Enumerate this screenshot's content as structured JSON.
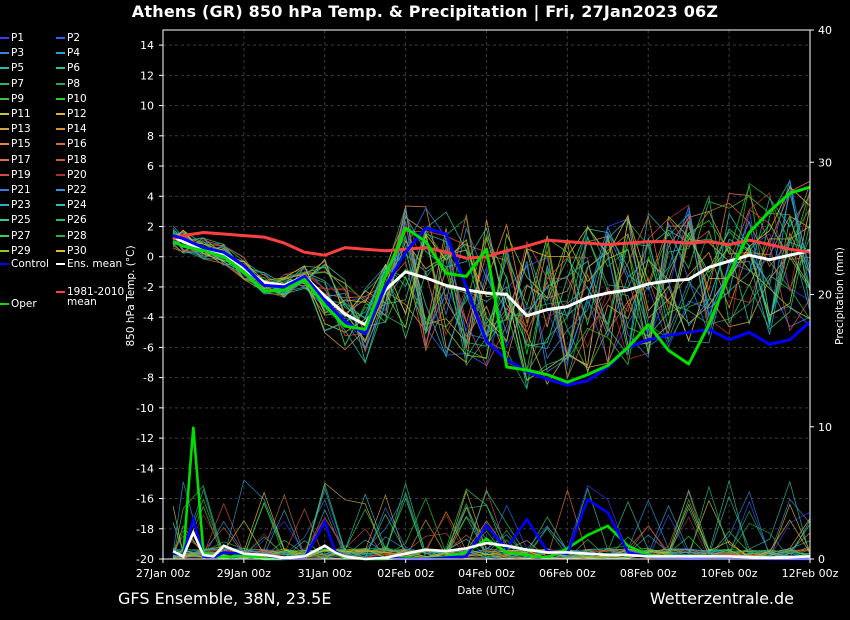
{
  "title": "Athens  (GR)  850 hPa Temp. & Precipitation | Fri, 27Jan2023 06Z",
  "footer": {
    "left": "GFS Ensemble, 38N, 23.5E",
    "right": "Wetterzentrale.de"
  },
  "legend": {
    "members": [
      {
        "label": "P1",
        "color": "#3a3aff"
      },
      {
        "label": "P2",
        "color": "#2f5fff"
      },
      {
        "label": "P3",
        "color": "#3b83d8"
      },
      {
        "label": "P4",
        "color": "#2ea0d0"
      },
      {
        "label": "P5",
        "color": "#2fb4b4"
      },
      {
        "label": "P6",
        "color": "#2ac48a"
      },
      {
        "label": "P7",
        "color": "#2fb46a"
      },
      {
        "label": "P8",
        "color": "#27a85a"
      },
      {
        "label": "P9",
        "color": "#3fc43f"
      },
      {
        "label": "P10",
        "color": "#22d422"
      },
      {
        "label": "P11",
        "color": "#c8c83a"
      },
      {
        "label": "P12",
        "color": "#d4b43a"
      },
      {
        "label": "P13",
        "color": "#d8a23c"
      },
      {
        "label": "P14",
        "color": "#e0902a"
      },
      {
        "label": "P15",
        "color": "#e08a4a"
      },
      {
        "label": "P16",
        "color": "#c8703a"
      },
      {
        "label": "P17",
        "color": "#e07040"
      },
      {
        "label": "P18",
        "color": "#d05a3a"
      },
      {
        "label": "P19",
        "color": "#d84a4a"
      },
      {
        "label": "P20",
        "color": "#b03030"
      },
      {
        "label": "P21",
        "color": "#3a7ad8"
      },
      {
        "label": "P22",
        "color": "#2a9ae0"
      },
      {
        "label": "P23",
        "color": "#2ab0c8"
      },
      {
        "label": "P24",
        "color": "#2ac0b0"
      },
      {
        "label": "P25",
        "color": "#2ad08a"
      },
      {
        "label": "P26",
        "color": "#22c06a"
      },
      {
        "label": "P27",
        "color": "#3ad050"
      },
      {
        "label": "P28",
        "color": "#2ab040"
      },
      {
        "label": "P29",
        "color": "#8ad020"
      },
      {
        "label": "P30",
        "color": "#e0c020"
      }
    ],
    "control": {
      "label": "Control",
      "color": "#0000ff"
    },
    "ens_mean": {
      "label": "Ens. mean",
      "color": "#ffffff"
    },
    "oper": {
      "label": "Oper",
      "color": "#00e000"
    },
    "climate": {
      "line1": "1981-2010",
      "line2": "mean",
      "color": "#ff4040"
    }
  },
  "chart_data": {
    "type": "line",
    "xlabel": "Date (UTC)",
    "ylabel": "850 hPa Temp. (°C)",
    "y2label": "Precipitation (mm)",
    "x_start": "2023-01-27T00",
    "x_end": "2023-02-12T00",
    "xticks": [
      "27Jan 00z",
      "29Jan 00z",
      "31Jan 00z",
      "02Feb 00z",
      "04Feb 00z",
      "06Feb 00z",
      "08Feb 00z",
      "10Feb 00z",
      "12Feb 00z"
    ],
    "ylim": [
      -20,
      15
    ],
    "yticks": [
      -20,
      -18,
      -16,
      -14,
      -12,
      -10,
      -8,
      -6,
      -4,
      -2,
      0,
      2,
      4,
      6,
      8,
      10,
      12,
      14
    ],
    "y2lim": [
      0,
      40
    ],
    "y2ticks": [
      0,
      10,
      20,
      30,
      40
    ],
    "grid": true,
    "series": [
      {
        "name": "Ens. mean",
        "color": "#ffffff",
        "x_days": [
          0.25,
          0.5,
          1,
          1.5,
          2,
          2.5,
          3,
          3.5,
          4,
          4.5,
          5,
          5.5,
          6,
          6.5,
          7,
          7.5,
          8,
          8.5,
          9,
          9.5,
          10,
          10.5,
          11,
          11.5,
          12,
          12.5,
          13,
          13.5,
          14,
          14.5,
          15,
          15.5,
          16
        ],
        "values": [
          1.3,
          1.0,
          0.5,
          0.2,
          -0.8,
          -1.7,
          -1.9,
          -1.3,
          -2.6,
          -3.8,
          -4.5,
          -2.2,
          -1.0,
          -1.4,
          -1.9,
          -2.2,
          -2.4,
          -2.5,
          -3.9,
          -3.5,
          -3.3,
          -2.7,
          -2.4,
          -2.2,
          -1.8,
          -1.6,
          -1.5,
          -0.7,
          -0.3,
          0.1,
          -0.2,
          0.1,
          0.4
        ]
      },
      {
        "name": "1981-2010 mean",
        "color": "#ff4040",
        "x_days": [
          0.25,
          0.5,
          1,
          1.5,
          2,
          2.5,
          3,
          3.5,
          4,
          4.5,
          5,
          5.5,
          6,
          6.5,
          7,
          7.5,
          8,
          8.5,
          9,
          9.5,
          10,
          10.5,
          11,
          11.5,
          12,
          12.5,
          13,
          13.5,
          14,
          14.5,
          15,
          15.5,
          16
        ],
        "values": [
          1.2,
          1.4,
          1.6,
          1.5,
          1.4,
          1.3,
          0.9,
          0.3,
          0.1,
          0.6,
          0.5,
          0.4,
          0.5,
          0.6,
          0.3,
          -0.1,
          0.0,
          0.4,
          0.7,
          1.1,
          1.0,
          0.9,
          0.8,
          0.9,
          1.0,
          1.0,
          0.9,
          1.0,
          0.8,
          1.1,
          0.8,
          0.5,
          0.3
        ]
      },
      {
        "name": "Control",
        "color": "#0000ff",
        "x_days": [
          0.25,
          0.5,
          1,
          1.5,
          2,
          2.5,
          3,
          3.5,
          4,
          4.5,
          5,
          5.5,
          6,
          6.5,
          7,
          7.5,
          8,
          8.5,
          9,
          9.5,
          10,
          10.5,
          11,
          11.5,
          12,
          12.5,
          13,
          13.5,
          14,
          14.5,
          15,
          15.5,
          16
        ],
        "values": [
          1.4,
          1.2,
          0.6,
          0.3,
          -0.6,
          -1.9,
          -2.0,
          -1.3,
          -2.9,
          -4.3,
          -5.1,
          -2.0,
          0.3,
          1.9,
          1.5,
          -2.0,
          -5.6,
          -6.8,
          -7.6,
          -8.1,
          -8.5,
          -8.2,
          -7.3,
          -6.0,
          -5.5,
          -5.2,
          -5.0,
          -4.8,
          -5.5,
          -5.0,
          -5.8,
          -5.5,
          -4.3
        ]
      },
      {
        "name": "Oper",
        "color": "#00e000",
        "x_days": [
          0.25,
          0.5,
          1,
          1.5,
          2,
          2.5,
          3,
          3.5,
          4,
          4.5,
          5,
          5.5,
          6,
          6.5,
          7,
          7.5,
          8,
          8.5,
          9,
          9.5,
          10,
          10.5,
          11,
          11.5,
          12,
          12.5,
          13,
          13.5,
          14,
          14.5,
          15,
          15.5,
          16
        ],
        "values": [
          1.0,
          0.7,
          0.4,
          0.0,
          -1.0,
          -2.3,
          -2.2,
          -1.5,
          -3.2,
          -4.6,
          -4.8,
          -1.3,
          1.9,
          1.0,
          -1.1,
          -1.3,
          0.5,
          -7.3,
          -7.5,
          -7.8,
          -8.3,
          -7.8,
          -7.2,
          -6.0,
          -4.5,
          -6.2,
          -7.1,
          -4.5,
          -1.2,
          1.6,
          3.0,
          4.2,
          4.6
        ]
      }
    ],
    "precip_series": [
      {
        "name": "Oper",
        "color": "#00e000",
        "x_days": [
          0.25,
          0.5,
          0.75,
          1,
          1.25,
          1.5,
          2,
          2.5,
          3,
          3.5,
          4,
          4.25,
          4.5,
          5,
          5.5,
          6,
          6.5,
          7,
          7.5,
          8,
          8.5,
          9,
          9.5,
          10,
          10.5,
          11,
          11.5,
          12,
          12.5,
          13,
          14,
          15,
          16
        ],
        "values": [
          0.5,
          0.2,
          10.0,
          0.5,
          0.2,
          0.1,
          0.3,
          0.0,
          0.0,
          0.2,
          1.0,
          0.5,
          0.1,
          0.0,
          0.0,
          0.1,
          0.0,
          0.2,
          0.5,
          1.5,
          0.5,
          0.3,
          0.1,
          0.8,
          1.8,
          2.5,
          1.0,
          0.3,
          0.1,
          0.2,
          0.1,
          0.1,
          0.0
        ]
      },
      {
        "name": "Control",
        "color": "#0000ff",
        "x_days": [
          0.25,
          0.5,
          0.75,
          1,
          1.25,
          1.5,
          2,
          2.5,
          3,
          3.5,
          4,
          4.25,
          4.5,
          5,
          5.5,
          6,
          6.5,
          7,
          7.5,
          8,
          8.5,
          9,
          9.5,
          10,
          10.5,
          11,
          11.5,
          12,
          12.5,
          13,
          14,
          15,
          16
        ],
        "values": [
          0.4,
          0.3,
          3.0,
          0.2,
          0.1,
          0.5,
          0.4,
          0.3,
          0.0,
          0.1,
          2.8,
          0.6,
          0.2,
          0.0,
          0.1,
          0.0,
          0.0,
          0.1,
          0.2,
          2.5,
          0.8,
          3.0,
          0.6,
          0.4,
          4.5,
          3.5,
          0.5,
          0.2,
          0.1,
          0.0,
          0.1,
          0.0,
          0.0
        ]
      },
      {
        "name": "Ens. mean",
        "color": "#ffffff",
        "x_days": [
          0.25,
          0.5,
          0.75,
          1,
          1.25,
          1.5,
          2,
          2.5,
          3,
          3.5,
          4,
          4.25,
          4.5,
          5,
          5.5,
          6,
          6.5,
          7,
          7.5,
          8,
          8.5,
          9,
          9.5,
          10,
          10.5,
          11,
          11.5,
          12,
          12.5,
          13,
          14,
          15,
          16
        ],
        "values": [
          0.6,
          0.2,
          2.0,
          0.3,
          0.2,
          1.0,
          0.4,
          0.3,
          0.1,
          0.2,
          1.0,
          0.5,
          0.2,
          0.0,
          0.1,
          0.4,
          0.7,
          0.6,
          0.8,
          1.2,
          1.0,
          0.7,
          0.5,
          0.5,
          0.4,
          0.3,
          0.3,
          0.2,
          0.2,
          0.2,
          0.2,
          0.1,
          0.2
        ]
      }
    ]
  }
}
